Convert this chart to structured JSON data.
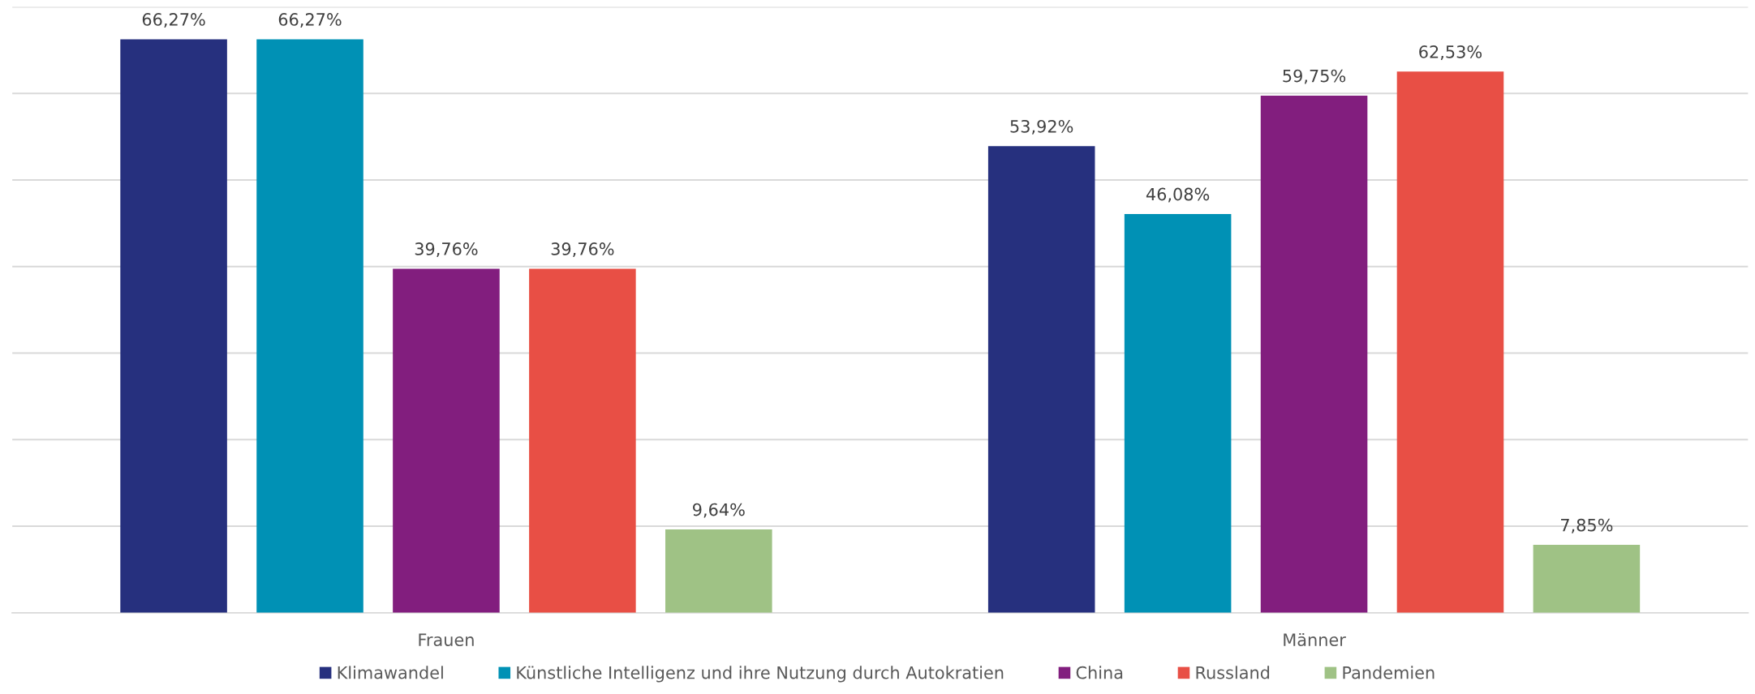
{
  "chart_data": {
    "type": "bar",
    "categories": [
      "Frauen",
      "Männer"
    ],
    "series": [
      {
        "name": "Klimawandel",
        "color": "#26307e",
        "values": [
          66.27,
          53.92
        ],
        "value_labels": [
          "66,27%",
          "53,92%"
        ]
      },
      {
        "name": "Künstliche Intelligenz und ihre Nutzung durch Autokratien",
        "color": "#0091b5",
        "values": [
          66.27,
          46.08
        ],
        "value_labels": [
          "66,27%",
          "46,08%"
        ]
      },
      {
        "name": "China",
        "color": "#821e7e",
        "values": [
          39.76,
          59.75
        ],
        "value_labels": [
          "39,76%",
          "59,75%"
        ]
      },
      {
        "name": "Russland",
        "color": "#e84f45",
        "values": [
          39.76,
          62.53
        ],
        "value_labels": [
          "39,76%",
          "62,53%"
        ]
      },
      {
        "name": "Pandemien",
        "color": "#9fc285",
        "values": [
          9.64,
          7.85
        ],
        "value_labels": [
          "9,64%",
          "7,85%"
        ]
      }
    ],
    "ylim": [
      0,
      70
    ],
    "yticks": [
      {
        "value": 0,
        "label": null
      },
      {
        "value": 10,
        "label": null
      },
      {
        "value": 20,
        "label": null
      },
      {
        "value": 30,
        "label": null
      },
      {
        "value": 40,
        "label": null
      },
      {
        "value": 50,
        "label": null
      },
      {
        "value": 60,
        "label": null
      },
      {
        "value": 70,
        "label": null
      }
    ],
    "tick_labels": "x",
    "grid": "y",
    "legend": "bottom"
  }
}
